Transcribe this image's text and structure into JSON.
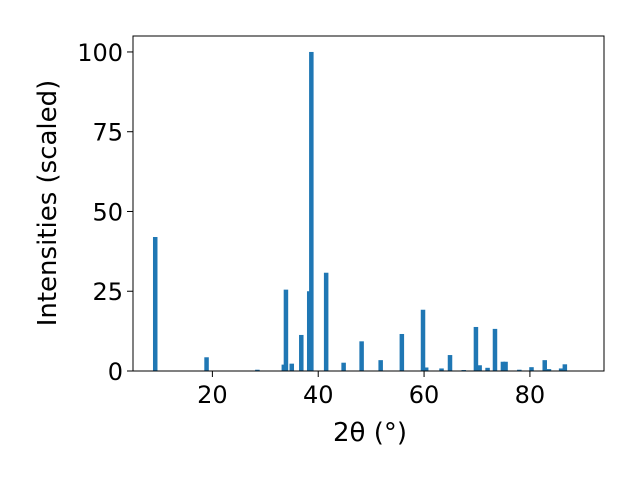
{
  "chart_data": {
    "type": "bar",
    "xlabel": "2θ (°)",
    "ylabel": "Intensities (scaled)",
    "xlim": [
      5,
      94
    ],
    "ylim": [
      0,
      105
    ],
    "x_ticks": [
      20,
      40,
      60,
      80
    ],
    "y_ticks": [
      0,
      25,
      50,
      75,
      100
    ],
    "bar_color": "#1f77b4",
    "grid": false,
    "x": [
      9.2,
      18.9,
      28.5,
      33.5,
      33.9,
      35.0,
      36.8,
      38.3,
      38.7,
      41.5,
      44.8,
      48.2,
      51.8,
      55.8,
      59.8,
      60.4,
      63.3,
      64.9,
      67.5,
      69.8,
      70.5,
      72.0,
      73.4,
      74.9,
      75.4,
      78.0,
      80.3,
      82.8,
      83.6,
      85.9,
      86.6
    ],
    "values": [
      42,
      4.3,
      0.4,
      2,
      25.5,
      2.3,
      11.3,
      25,
      100,
      30.8,
      2.6,
      9.3,
      3.4,
      11.6,
      19.2,
      1.1,
      0.8,
      5,
      0.3,
      13.8,
      1.8,
      1,
      13.2,
      2.9,
      2.9,
      0.4,
      1.2,
      3.4,
      0.6,
      0.8,
      2.1
    ]
  }
}
